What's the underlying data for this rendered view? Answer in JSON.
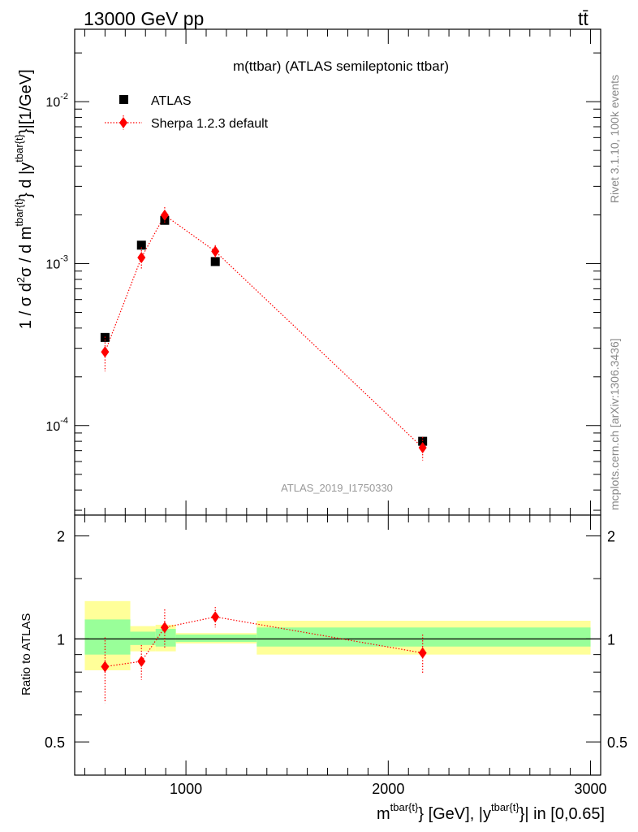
{
  "header": {
    "energy_label": "13000 GeV pp",
    "process_label": "tt̄"
  },
  "plot": {
    "title": "m(ttbar) (ATLAS semileptonic ttbar)",
    "analysis_id": "ATLAS_2019_I1750330",
    "side_label_top": "Rivet 3.1.10,  100k events",
    "side_label_bottom": "mcplots.cern.ch [arXiv:1306.3436]",
    "ylabel_main": "1 / σ d²σ / d m^{tbar{t}} d |y^{tbar{t}}|[1/GeV]",
    "ylabel_ratio": "Ratio to ATLAS",
    "xlabel": "m^{tbar{t}} [GeV], |y^{tbar{t}}| in [0,0.65]"
  },
  "chart_data": [
    {
      "type": "scatter",
      "panel": "main",
      "yscale": "log",
      "xlim": [
        450,
        3050
      ],
      "ylim": [
        2.8e-05,
        0.028
      ],
      "x_ticks": [
        1000,
        2000,
        3000
      ],
      "x_tick_labels": [
        "1000",
        "2000",
        "3000"
      ],
      "y_ticks": [
        0.0001,
        0.001,
        0.01
      ],
      "y_tick_labels": [
        "10^-4",
        "10^-3",
        "10^-2"
      ],
      "legend_position": "top-left",
      "series": [
        {
          "name": "ATLAS",
          "color": "#000000",
          "marker": "square",
          "x": [
            600,
            780,
            895,
            1145,
            2170
          ],
          "y": [
            0.00035,
            0.0013,
            0.00185,
            0.00103,
            8e-05
          ]
        },
        {
          "name": "Sherpa 1.2.3 default",
          "color": "#ff0000",
          "marker": "diamond",
          "line": "dotted",
          "x": [
            600,
            780,
            895,
            1145,
            2170
          ],
          "y": [
            0.000285,
            0.00109,
            0.00199,
            0.00119,
            7.3e-05
          ],
          "y_err_low": [
            6.9e-05,
            0.00017,
            0.00024,
            0.00011,
            1.2e-05
          ],
          "y_err_high": [
            6.9e-05,
            0.00017,
            0.00024,
            0.00011,
            1.2e-05
          ]
        }
      ]
    },
    {
      "type": "scatter",
      "panel": "ratio",
      "xlim": [
        450,
        3050
      ],
      "ylim": [
        0.4,
        2.3
      ],
      "y_ticks": [
        0.5,
        1,
        2
      ],
      "y_tick_labels": [
        "0.5",
        "1",
        "2"
      ],
      "reference_line": 1,
      "bands": [
        {
          "x_low": 500,
          "x_high": 725,
          "inner_low": 0.9,
          "inner_high": 1.14,
          "outer_low": 0.81,
          "outer_high": 1.29
        },
        {
          "x_low": 725,
          "x_high": 850,
          "inner_low": 0.96,
          "inner_high": 1.05,
          "outer_low": 0.92,
          "outer_high": 1.09
        },
        {
          "x_low": 850,
          "x_high": 950,
          "inner_low": 0.95,
          "inner_high": 1.07,
          "outer_low": 0.92,
          "outer_high": 1.1
        },
        {
          "x_low": 950,
          "x_high": 1350,
          "inner_low": 0.98,
          "inner_high": 1.03,
          "outer_low": 0.97,
          "outer_high": 1.04
        },
        {
          "x_low": 1350,
          "x_high": 3000,
          "inner_low": 0.95,
          "inner_high": 1.08,
          "outer_low": 0.9,
          "outer_high": 1.13
        }
      ],
      "series": [
        {
          "name": "Sherpa 1.2.3 default",
          "color": "#ff0000",
          "x": [
            600,
            780,
            895,
            1145,
            2170
          ],
          "y": [
            0.83,
            0.86,
            1.08,
            1.16,
            0.91
          ],
          "y_err_low": [
            0.18,
            0.1,
            0.14,
            0.08,
            0.12
          ],
          "y_err_high": [
            0.18,
            0.1,
            0.14,
            0.08,
            0.12
          ]
        }
      ]
    }
  ]
}
